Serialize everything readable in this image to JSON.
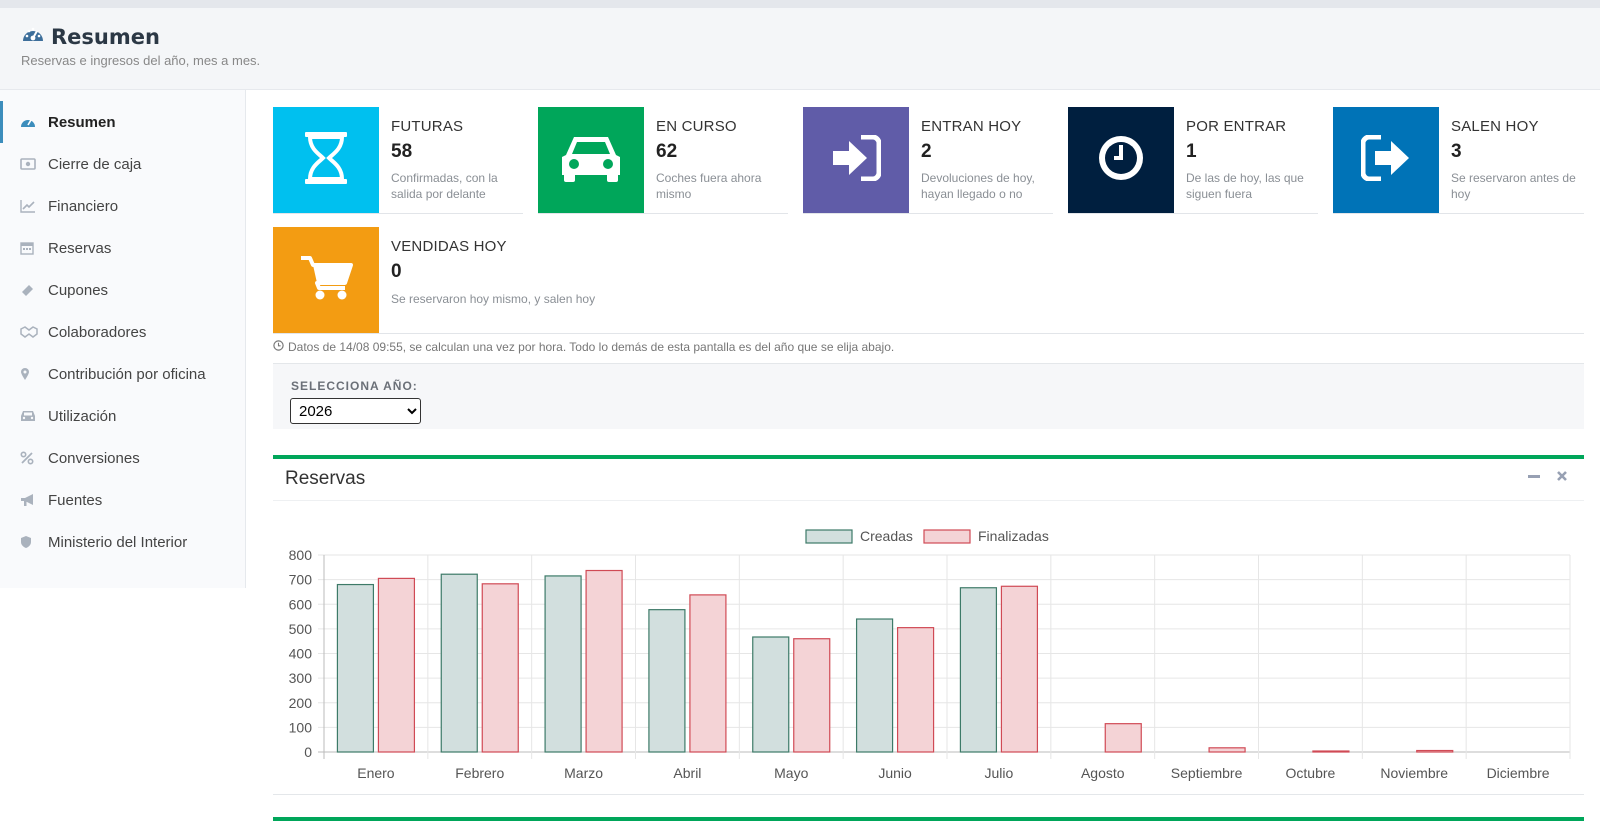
{
  "header": {
    "title": "Resumen",
    "subtitle": "Reservas e ingresos del año, mes a mes."
  },
  "sidebar": {
    "items": [
      {
        "label": "Resumen",
        "icon": "dashboard-icon",
        "active": true
      },
      {
        "label": "Cierre de caja",
        "icon": "money-icon",
        "active": false
      },
      {
        "label": "Financiero",
        "icon": "line-chart-icon",
        "active": false
      },
      {
        "label": "Reservas",
        "icon": "calendar-icon",
        "active": false
      },
      {
        "label": "Cupones",
        "icon": "ticket-icon",
        "active": false
      },
      {
        "label": "Colaboradores",
        "icon": "handshake-icon",
        "active": false
      },
      {
        "label": "Contribución por oficina",
        "icon": "map-marker-icon",
        "active": false
      },
      {
        "label": "Utilización",
        "icon": "car-icon",
        "active": false
      },
      {
        "label": "Conversiones",
        "icon": "percent-icon",
        "active": false
      },
      {
        "label": "Fuentes",
        "icon": "bullhorn-icon",
        "active": false
      },
      {
        "label": "Ministerio del Interior",
        "icon": "shield-icon",
        "active": false
      }
    ]
  },
  "stats": [
    {
      "title": "FUTURAS",
      "value": "58",
      "desc": "Confirmadas, con la salida por delante",
      "color": "#00c0ef",
      "icon": "hourglass-icon"
    },
    {
      "title": "EN CURSO",
      "value": "62",
      "desc": "Coches fuera ahora mismo",
      "color": "#00a65a",
      "icon": "car-icon"
    },
    {
      "title": "ENTRAN HOY",
      "value": "2",
      "desc": "Devoluciones de hoy, hayan llegado o no",
      "color": "#605ca8",
      "icon": "sign-in-icon"
    },
    {
      "title": "POR ENTRAR",
      "value": "1",
      "desc": "De las de hoy, las que siguen fuera",
      "color": "#001f3f",
      "icon": "clock-icon"
    },
    {
      "title": "SALEN HOY",
      "value": "3",
      "desc": "Se reservaron antes de hoy",
      "color": "#0073b7",
      "icon": "sign-out-icon"
    },
    {
      "title": "VENDIDAS HOY",
      "value": "0",
      "desc": "Se reservaron hoy mismo, y salen hoy",
      "color": "#f39c12",
      "icon": "shopping-cart-icon"
    }
  ],
  "note": "Datos de 14/08 09:55, se calculan una vez por hora. Todo lo demás de esta pantalla es del año que se elija abajo.",
  "year_selector": {
    "label": "SELECCIONA AÑO:",
    "value": "2026"
  },
  "panel": {
    "title": "Reservas",
    "tools": [
      "minus-icon",
      "close-icon"
    ]
  },
  "chart_data": {
    "type": "bar",
    "categories": [
      "Enero",
      "Febrero",
      "Marzo",
      "Abril",
      "Mayo",
      "Junio",
      "Julio",
      "Agosto",
      "Septiembre",
      "Octubre",
      "Noviembre",
      "Diciembre"
    ],
    "series": [
      {
        "name": "Creadas",
        "values": [
          680,
          722,
          715,
          578,
          467,
          540,
          667,
          0,
          0,
          0,
          0,
          0
        ],
        "fill": "#d2dfde",
        "stroke": "#3d7a68"
      },
      {
        "name": "Finalizadas",
        "values": [
          705,
          683,
          737,
          638,
          460,
          505,
          673,
          115,
          17,
          4,
          6,
          0
        ],
        "fill": "#f4d3d6",
        "stroke": "#d04a55"
      }
    ],
    "yticks": [
      "0",
      "100",
      "200",
      "300",
      "400",
      "500",
      "600",
      "700",
      "800"
    ],
    "ylim": [
      0,
      800
    ],
    "grid": true,
    "legend": "top-center",
    "title": "",
    "xlabel": "",
    "ylabel": ""
  }
}
